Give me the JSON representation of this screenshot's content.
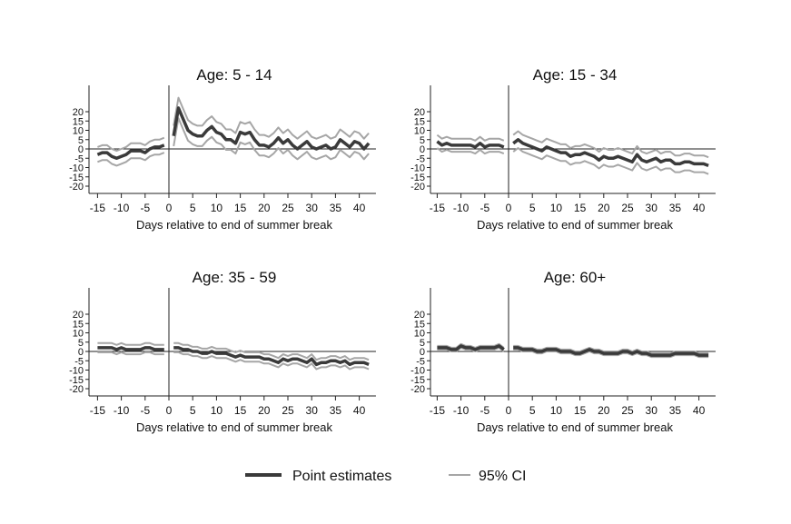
{
  "legend": {
    "point_label": "Point estimates",
    "ci_label": "95% CI",
    "point_color": "#3a3a3a",
    "ci_color": "#a6a6a6"
  },
  "chart_data": [
    {
      "type": "line",
      "title": "Age: 5 - 14",
      "xlabel": "Days relative to end of summer break",
      "ylabel": "",
      "xticks": [
        -15,
        -10,
        -5,
        0,
        5,
        10,
        15,
        20,
        25,
        30,
        35,
        40
      ],
      "yticks": [
        20,
        15,
        10,
        5,
        0,
        -5,
        -10,
        -15,
        -20
      ],
      "ylim": [
        -20,
        20
      ],
      "pre_days": [
        -15,
        -14,
        -13,
        -12,
        -11,
        -10,
        -9,
        -8,
        -7,
        -6,
        -5,
        -4,
        -3,
        -2,
        -1
      ],
      "pre_estimate": [
        -3,
        -2,
        -2,
        -4,
        -5,
        -4,
        -3,
        -1,
        -1,
        -1,
        -2,
        0,
        1,
        1,
        2
      ],
      "post_days": [
        1,
        2,
        3,
        4,
        5,
        6,
        7,
        8,
        9,
        10,
        11,
        12,
        13,
        14,
        15,
        16,
        17,
        18,
        19,
        20,
        21,
        22,
        23,
        24,
        25,
        26,
        27,
        28,
        29,
        30,
        31,
        32,
        33,
        34,
        35,
        36,
        37,
        38,
        39,
        40,
        41,
        42
      ],
      "post_estimate": [
        7,
        22,
        16,
        10,
        8,
        7,
        7,
        10,
        12,
        9,
        8,
        5,
        5,
        3,
        9,
        8,
        9,
        5,
        2,
        2,
        1,
        3,
        6,
        3,
        5,
        2,
        0,
        2,
        4,
        1,
        0,
        1,
        2,
        0,
        1,
        5,
        3,
        1,
        4,
        3,
        0,
        3
      ],
      "ci_halfwidth_pre": 4,
      "ci_halfwidth_post": 5.5
    },
    {
      "type": "line",
      "title": "Age: 15 - 34",
      "xlabel": "Days relative to end of summer break",
      "ylabel": "",
      "xticks": [
        -15,
        -10,
        -5,
        0,
        5,
        10,
        15,
        20,
        25,
        30,
        35,
        40
      ],
      "yticks": [
        20,
        15,
        10,
        5,
        0,
        -5,
        -10,
        -15,
        -20
      ],
      "ylim": [
        -20,
        20
      ],
      "pre_days": [
        -15,
        -14,
        -13,
        -12,
        -11,
        -10,
        -9,
        -8,
        -7,
        -6,
        -5,
        -4,
        -3,
        -2,
        -1
      ],
      "pre_estimate": [
        4,
        2,
        3,
        2,
        2,
        2,
        2,
        2,
        1,
        3,
        1,
        2,
        2,
        2,
        1
      ],
      "post_days": [
        1,
        2,
        3,
        4,
        5,
        6,
        7,
        8,
        9,
        10,
        11,
        12,
        13,
        14,
        15,
        16,
        17,
        18,
        19,
        20,
        21,
        22,
        23,
        24,
        25,
        26,
        27,
        28,
        29,
        30,
        31,
        32,
        33,
        34,
        35,
        36,
        37,
        38,
        39,
        40,
        41,
        42
      ],
      "post_estimate": [
        3,
        5,
        3,
        2,
        1,
        0,
        -1,
        1,
        0,
        -1,
        -2,
        -2,
        -4,
        -3,
        -3,
        -2,
        -3,
        -4,
        -6,
        -4,
        -5,
        -5,
        -4,
        -5,
        -6,
        -7,
        -3,
        -6,
        -7,
        -6,
        -5,
        -7,
        -6,
        -6,
        -8,
        -8,
        -7,
        -7,
        -8,
        -8,
        -8,
        -9
      ],
      "ci_halfwidth_pre": 3.5,
      "ci_halfwidth_post": 4.5
    },
    {
      "type": "line",
      "title": "Age: 35 - 59",
      "xlabel": "Days relative to end of summer break",
      "ylabel": "",
      "xticks": [
        -15,
        -10,
        -5,
        0,
        5,
        10,
        15,
        20,
        25,
        30,
        35,
        40
      ],
      "yticks": [
        20,
        15,
        10,
        5,
        0,
        -5,
        -10,
        -15,
        -20
      ],
      "ylim": [
        -20,
        20
      ],
      "pre_days": [
        -15,
        -14,
        -13,
        -12,
        -11,
        -10,
        -9,
        -8,
        -7,
        -6,
        -5,
        -4,
        -3,
        -2,
        -1
      ],
      "pre_estimate": [
        2,
        2,
        2,
        2,
        1,
        2,
        1,
        1,
        1,
        1,
        2,
        2,
        1,
        1,
        1
      ],
      "post_days": [
        1,
        2,
        3,
        4,
        5,
        6,
        7,
        8,
        9,
        10,
        11,
        12,
        13,
        14,
        15,
        16,
        17,
        18,
        19,
        20,
        21,
        22,
        23,
        24,
        25,
        26,
        27,
        28,
        29,
        30,
        31,
        32,
        33,
        34,
        35,
        36,
        37,
        38,
        39,
        40,
        41,
        42
      ],
      "post_estimate": [
        2,
        2,
        1,
        1,
        0,
        0,
        -1,
        -1,
        0,
        -1,
        -1,
        -1,
        -2,
        -3,
        -2,
        -3,
        -3,
        -3,
        -3,
        -4,
        -4,
        -5,
        -6,
        -4,
        -5,
        -4,
        -4,
        -5,
        -6,
        -4,
        -7,
        -6,
        -6,
        -5,
        -5,
        -6,
        -5,
        -7,
        -6,
        -6,
        -6,
        -7
      ],
      "ci_halfwidth_pre": 2.5,
      "ci_halfwidth_post": 2.5
    },
    {
      "type": "line",
      "title": "Age: 60+",
      "xlabel": "Days relative to end of summer break",
      "ylabel": "",
      "xticks": [
        -15,
        -10,
        -5,
        0,
        5,
        10,
        15,
        20,
        25,
        30,
        35,
        40
      ],
      "yticks": [
        20,
        15,
        10,
        5,
        0,
        -5,
        -10,
        -15,
        -20
      ],
      "ylim": [
        -20,
        20
      ],
      "pre_days": [
        -15,
        -14,
        -13,
        -12,
        -11,
        -10,
        -9,
        -8,
        -7,
        -6,
        -5,
        -4,
        -3,
        -2,
        -1
      ],
      "pre_estimate": [
        2,
        2,
        2,
        1,
        1,
        3,
        2,
        2,
        1,
        2,
        2,
        2,
        2,
        3,
        1
      ],
      "post_days": [
        1,
        2,
        3,
        4,
        5,
        6,
        7,
        8,
        9,
        10,
        11,
        12,
        13,
        14,
        15,
        16,
        17,
        18,
        19,
        20,
        21,
        22,
        23,
        24,
        25,
        26,
        27,
        28,
        29,
        30,
        31,
        32,
        33,
        34,
        35,
        36,
        37,
        38,
        39,
        40,
        41,
        42
      ],
      "post_estimate": [
        2,
        2,
        1,
        1,
        1,
        0,
        0,
        1,
        1,
        1,
        0,
        0,
        0,
        -1,
        -1,
        0,
        1,
        0,
        0,
        -1,
        -1,
        -1,
        -1,
        0,
        0,
        -1,
        0,
        -1,
        -1,
        -2,
        -2,
        -2,
        -2,
        -2,
        -1,
        -1,
        -1,
        -1,
        -1,
        -2,
        -2,
        -2
      ],
      "ci_halfwidth_pre": 1,
      "ci_halfwidth_post": 1
    }
  ]
}
